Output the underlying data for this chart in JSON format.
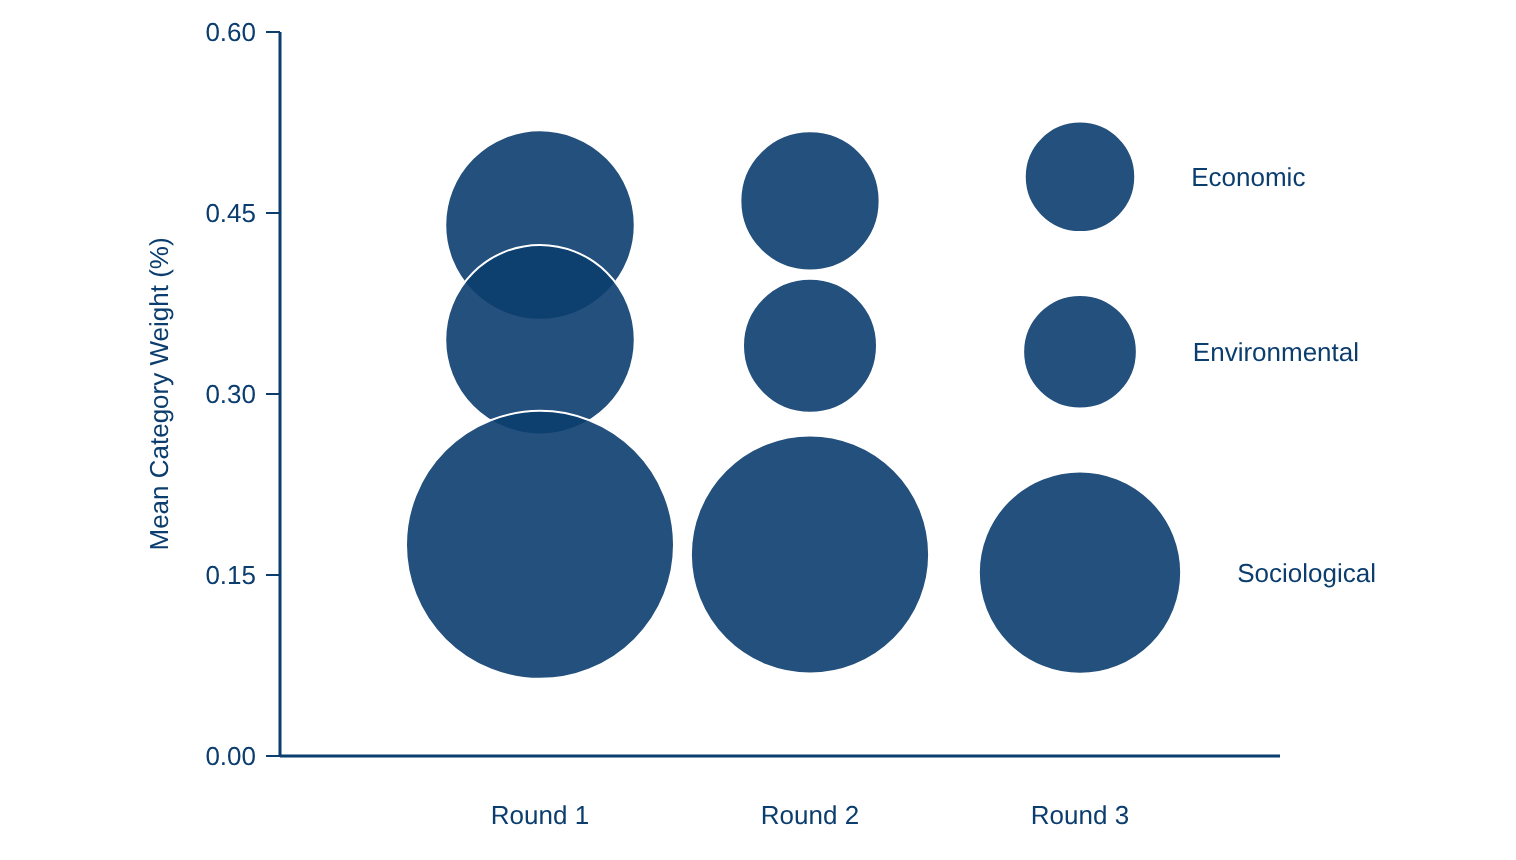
{
  "chart_data": {
    "type": "bubble",
    "ylabel": "Mean Category Weight (%)",
    "categories": [
      "Round 1",
      "Round 2",
      "Round 3"
    ],
    "ylim": [
      0,
      0.6
    ],
    "yticks": [
      {
        "value": 0,
        "label": "0.00"
      },
      {
        "value": 0.15,
        "label": "0.15"
      },
      {
        "value": 0.3,
        "label": "0.30"
      },
      {
        "value": 0.45,
        "label": "0.45"
      },
      {
        "value": 0.6,
        "label": "0.60"
      }
    ],
    "grid": false,
    "series": [
      {
        "name": "Economic",
        "color": "#0b3d6e",
        "values": [
          0.44,
          0.46,
          0.48
        ],
        "sizes": [
          0.5,
          0.27,
          0.17
        ]
      },
      {
        "name": "Environmental",
        "color": "#0b3d6e",
        "values": [
          0.345,
          0.34,
          0.335
        ],
        "sizes": [
          0.5,
          0.25,
          0.18
        ]
      },
      {
        "name": "Sociological",
        "color": "#0b3d6e",
        "values": [
          0.175,
          0.167,
          0.152
        ],
        "sizes": [
          1,
          0.79,
          0.57
        ]
      }
    ]
  }
}
